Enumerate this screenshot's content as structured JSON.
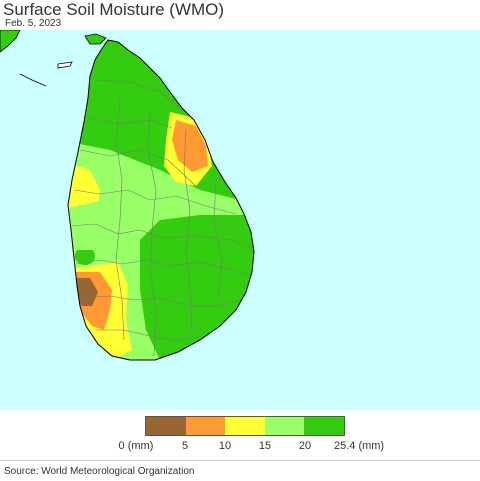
{
  "header": {
    "title": "Surface Soil Moisture (WMO)",
    "date": "Feb. 5, 2023"
  },
  "map": {
    "region": "Sri Lanka",
    "ocean_color": "#ccffff",
    "border_color": "#777777",
    "coast_color": "#000000"
  },
  "legend": {
    "colors": [
      "#996633",
      "#ff9933",
      "#ffff33",
      "#99ff66",
      "#33cc11"
    ],
    "ticks": [
      "0 (mm)",
      "5",
      "10",
      "15",
      "20",
      "25.4 (mm)"
    ]
  },
  "footer": {
    "source": "Source: World Meteorological Organization"
  }
}
